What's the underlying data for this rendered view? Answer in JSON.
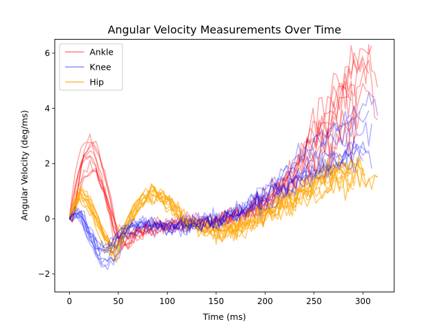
{
  "chart_data": {
    "type": "line",
    "title": "Angular Velocity Measurements Over Time",
    "xlabel": "Time (ms)",
    "ylabel": "Angular Velocity (deg/ms)",
    "xlim": [
      -15,
      332
    ],
    "ylim": [
      -2.65,
      6.5
    ],
    "xticks": [
      0,
      50,
      100,
      150,
      200,
      250,
      300
    ],
    "yticks": [
      -2,
      0,
      2,
      4,
      6
    ],
    "grid": false,
    "legend_position": "top-left",
    "series": [
      {
        "name": "Ankle",
        "color": "#ff0000",
        "opacity": 0.35,
        "traces": 10,
        "keypoints": [
          [
            0,
            0
          ],
          [
            10,
            1.8
          ],
          [
            22,
            2.3
          ],
          [
            35,
            1.0
          ],
          [
            48,
            -0.8
          ],
          [
            58,
            -0.7
          ],
          [
            75,
            -0.35
          ],
          [
            100,
            -0.2
          ],
          [
            150,
            -0.05
          ],
          [
            175,
            0.15
          ],
          [
            200,
            0.6
          ],
          [
            225,
            1.3
          ],
          [
            250,
            2.5
          ],
          [
            270,
            3.6
          ],
          [
            290,
            4.4
          ],
          [
            305,
            4.8
          ],
          [
            315,
            3.0
          ]
        ]
      },
      {
        "name": "Knee",
        "color": "#0000ff",
        "opacity": 0.3,
        "traces": 10,
        "keypoints": [
          [
            0,
            0
          ],
          [
            10,
            0.3
          ],
          [
            20,
            -0.6
          ],
          [
            32,
            -1.4
          ],
          [
            45,
            -1.2
          ],
          [
            55,
            -0.5
          ],
          [
            75,
            -0.2
          ],
          [
            100,
            -0.25
          ],
          [
            150,
            -0.1
          ],
          [
            175,
            0.3
          ],
          [
            200,
            0.8
          ],
          [
            225,
            1.5
          ],
          [
            250,
            2.2
          ],
          [
            270,
            2.6
          ],
          [
            290,
            3.0
          ],
          [
            305,
            3.3
          ],
          [
            315,
            2.8
          ]
        ]
      },
      {
        "name": "Hip",
        "color": "#ffa500",
        "opacity": 0.6,
        "traces": 10,
        "keypoints": [
          [
            0,
            0
          ],
          [
            10,
            0.9
          ],
          [
            20,
            0.5
          ],
          [
            35,
            -0.6
          ],
          [
            45,
            -1.2
          ],
          [
            55,
            -0.4
          ],
          [
            70,
            0.5
          ],
          [
            85,
            0.9
          ],
          [
            100,
            0.55
          ],
          [
            120,
            -0.15
          ],
          [
            150,
            -0.4
          ],
          [
            175,
            -0.3
          ],
          [
            200,
            0.2
          ],
          [
            225,
            0.6
          ],
          [
            250,
            1.2
          ],
          [
            275,
            1.5
          ],
          [
            300,
            1.5
          ],
          [
            315,
            1.4
          ]
        ]
      }
    ]
  }
}
